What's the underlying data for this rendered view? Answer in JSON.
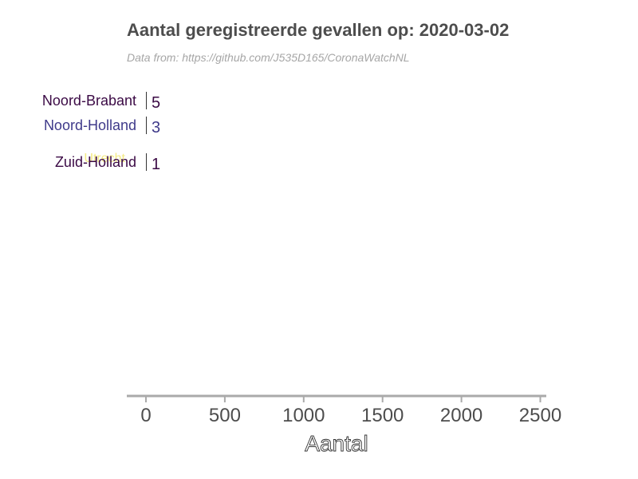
{
  "chart_data": {
    "type": "bar",
    "orientation": "horizontal",
    "title": "Aantal geregistreerde gevallen op: 2020-03-02",
    "subtitle": "Data from: https://github.com/J535D165/CoronaWatchNL",
    "xlabel": "Aantal",
    "xlim": [
      -120,
      2560
    ],
    "xticks": [
      0,
      500,
      1000,
      1500,
      2000,
      2500
    ],
    "grid": false,
    "legend": "none",
    "bars": [
      {
        "label": "Noord-Brabant",
        "value": 5,
        "value_label": "5",
        "color": "#3b0a45"
      },
      {
        "label": "Noord-Holland",
        "value": 3,
        "value_label": "3",
        "color": "#3f3a8a"
      },
      {
        "label": "Zuid-Holland",
        "value": 1,
        "value_label": "1",
        "color": "#3b0a45"
      }
    ],
    "faint_labels": [
      {
        "label": "Utrecht",
        "color": "#f2e66e"
      }
    ]
  }
}
